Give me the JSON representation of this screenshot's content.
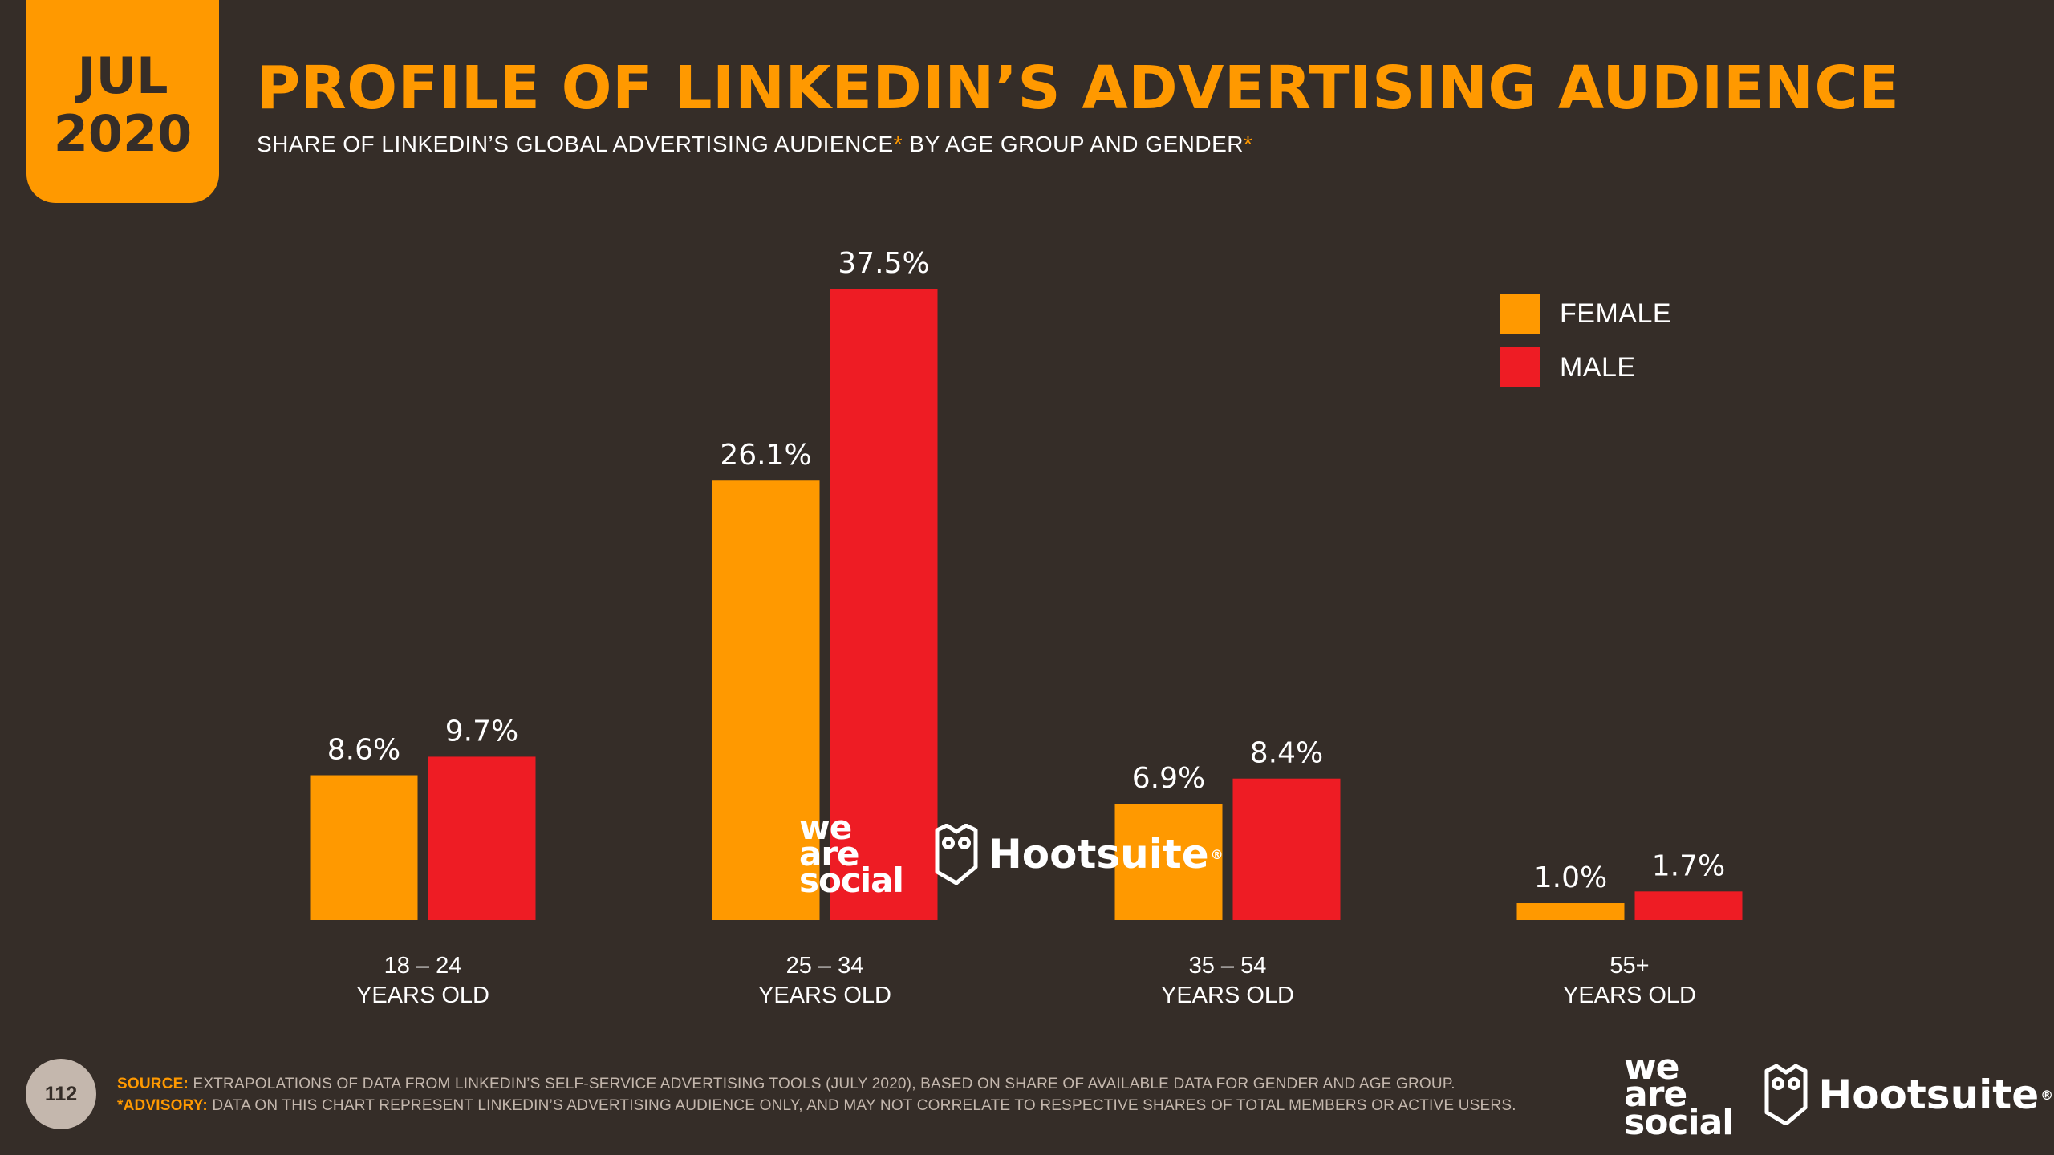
{
  "badge": {
    "month": "JUL",
    "year": "2020"
  },
  "title": "PROFILE OF LINKEDIN’S ADVERTISING AUDIENCE",
  "subtitle": {
    "part1": "SHARE OF LINKEDIN’S GLOBAL ADVERTISING AUDIENCE",
    "star": "*",
    "part2": " BY AGE GROUP AND GENDER"
  },
  "legend": [
    {
      "label": "FEMALE",
      "color": "#ff9900"
    },
    {
      "label": "MALE",
      "color": "#ee1c24"
    }
  ],
  "chart_data": {
    "type": "bar",
    "title": "PROFILE OF LINKEDIN’S ADVERTISING AUDIENCE",
    "categories": [
      {
        "range": "18 – 24",
        "unit": "YEARS OLD"
      },
      {
        "range": "25 – 34",
        "unit": "YEARS OLD"
      },
      {
        "range": "35 – 54",
        "unit": "YEARS OLD"
      },
      {
        "range": "55+",
        "unit": "YEARS OLD"
      }
    ],
    "series": [
      {
        "name": "FEMALE",
        "color": "#ff9900",
        "values": [
          8.6,
          26.1,
          6.9,
          1.0
        ],
        "labels": [
          "8.6%",
          "26.1%",
          "6.9%",
          "1.0%"
        ]
      },
      {
        "name": "MALE",
        "color": "#ee1c24",
        "values": [
          9.7,
          37.5,
          8.4,
          1.7
        ],
        "labels": [
          "9.7%",
          "37.5%",
          "8.4%",
          "1.7%"
        ]
      }
    ],
    "ylim": [
      0,
      37.5
    ],
    "grid": false,
    "legend_position": "top-right"
  },
  "logos": {
    "wearesocial": [
      "we",
      "are",
      "social"
    ],
    "hootsuite": "Hootsuite",
    "reg": "®"
  },
  "page_number": "112",
  "footnotes": {
    "source_label": "SOURCE:",
    "source_text": " EXTRAPOLATIONS OF DATA FROM LINKEDIN’S SELF-SERVICE ADVERTISING TOOLS (JULY 2020), BASED ON SHARE OF AVAILABLE DATA FOR GENDER AND AGE GROUP.",
    "advisory_label": "*ADVISORY:",
    "advisory_text": " DATA ON THIS CHART REPRESENT LINKEDIN’S ADVERTISING AUDIENCE ONLY, AND MAY NOT CORRELATE TO RESPECTIVE SHARES OF TOTAL MEMBERS OR ACTIVE USERS."
  }
}
